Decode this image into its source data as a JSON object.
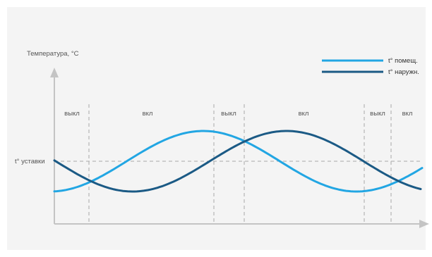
{
  "chart_data": {
    "type": "line",
    "ylabel": "Температура, °С",
    "setpoint_label": "t° уставки",
    "legend": [
      {
        "name": "t° помещ.",
        "color": "#22a6e3"
      },
      {
        "name": "t° наружн.",
        "color": "#1b5a85"
      }
    ],
    "modes": [
      "выкл",
      "вкл",
      "выкл",
      "вкл",
      "выкл",
      "вкл"
    ],
    "series": [
      {
        "name": "t° помещ.",
        "color": "#22a6e3",
        "shape": "sine-rising",
        "peak_x": 0.39,
        "trough_x": 0.83
      },
      {
        "name": "t° наружн.",
        "color": "#1b5a85",
        "shape": "sine-falling",
        "trough_x": 0.21,
        "peak_x": 0.64
      }
    ],
    "grid": "dashed",
    "legend_position": "top-right"
  }
}
